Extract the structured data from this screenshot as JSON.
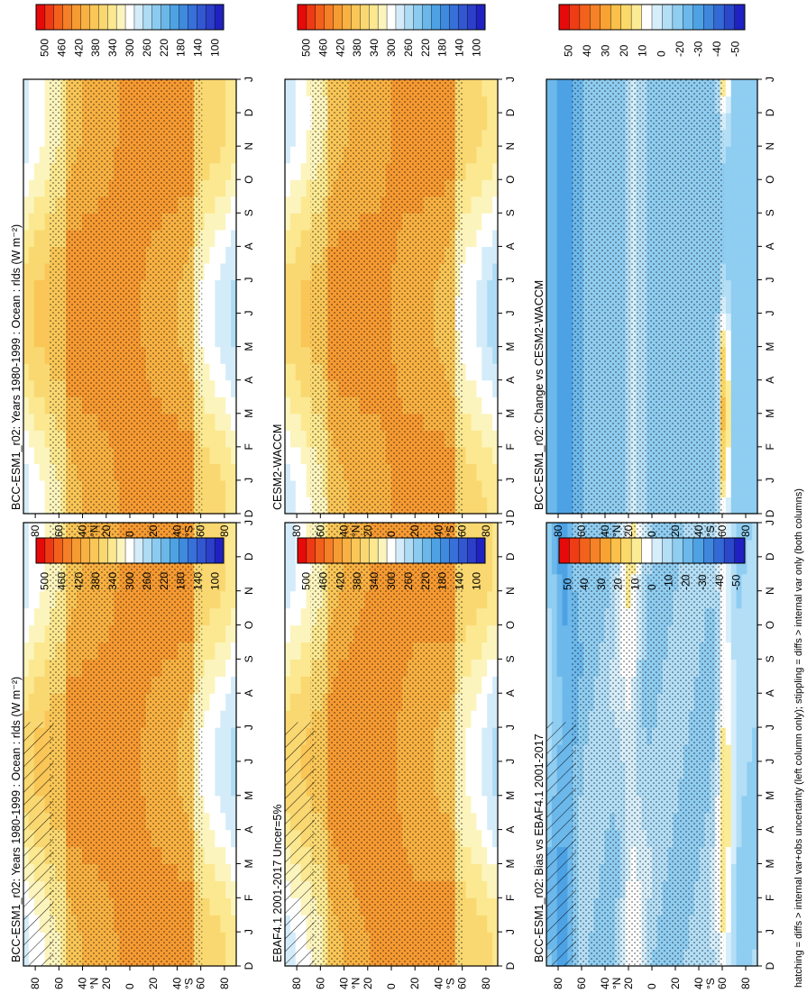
{
  "footnote": "hatching = diffs > internal var+obs uncertainty (left column only); stippling = diffs > internal var only (both columns)",
  "colors": {
    "abs": [
      "#e60a0a",
      "#ee3a14",
      "#f2601c",
      "#f47f26",
      "#f69a32",
      "#f8b142",
      "#f9c657",
      "#fad871",
      "#fbe890",
      "#fcf4bd",
      "#ffffff",
      "#d4ecf9",
      "#afdcf5",
      "#8ccbf0",
      "#6ab7ea",
      "#4ea2e4",
      "#3f89de",
      "#3770d8",
      "#3357d1",
      "#2c3fc9",
      "#1f22c0"
    ],
    "diff": [
      "#e60a0a",
      "#ee3c14",
      "#f2621c",
      "#f58226",
      "#f8a234",
      "#fac049",
      "#fbd86a",
      "#fceb95",
      "#ffffff",
      "#d6eefa",
      "#b3def6",
      "#8fcdf1",
      "#6cb8eb",
      "#4da2e4",
      "#3f87dd",
      "#3369d4",
      "#2a48c9",
      "#1f22c0"
    ]
  },
  "chart_data": [
    {
      "id": "p1",
      "type": "heatmap",
      "title": "BCC-ESM1_r02: Years 1980-1999 : Ocean : rlds (W m⁻²)",
      "x_ticks": [
        "D",
        "J",
        "F",
        "M",
        "A",
        "M",
        "J",
        "J",
        "A",
        "S",
        "O",
        "N",
        "D",
        "J"
      ],
      "y_ticks": [
        "80",
        "60",
        "40",
        "20",
        "0",
        "20",
        "40",
        "60",
        "80"
      ],
      "y_label_N": "°N",
      "y_label_S": "°S",
      "ylim": [
        -90,
        90
      ],
      "colorbar_labels": [
        "500",
        "460",
        "420",
        "380",
        "340",
        "300",
        "260",
        "220",
        "180",
        "140",
        "100"
      ],
      "colorbar_range": [
        80,
        520
      ],
      "hatching": "left column",
      "stippling": "both columns"
    },
    {
      "id": "p2",
      "type": "heatmap",
      "title": "BCC-ESM1_r02: Years 1980-1999 : Ocean : rlds (W m⁻²)",
      "x_ticks": [
        "D",
        "J",
        "F",
        "M",
        "A",
        "M",
        "J",
        "J",
        "A",
        "S",
        "O",
        "N",
        "D",
        "J"
      ],
      "y_ticks": [
        "80",
        "60",
        "40",
        "20",
        "0",
        "20",
        "40",
        "60",
        "80"
      ],
      "y_label_N": "°N",
      "y_label_S": "°S",
      "ylim": [
        -90,
        90
      ],
      "colorbar_labels": [
        "500",
        "460",
        "420",
        "380",
        "340",
        "300",
        "260",
        "220",
        "180",
        "140",
        "100"
      ],
      "colorbar_range": [
        80,
        520
      ]
    },
    {
      "id": "p3",
      "type": "heatmap",
      "title": "EBAF4.1 2001-2017 Uncer=5%",
      "x_ticks": [
        "D",
        "J",
        "F",
        "M",
        "A",
        "M",
        "J",
        "J",
        "A",
        "S",
        "O",
        "N",
        "D",
        "J"
      ],
      "y_ticks": [
        "80",
        "60",
        "40",
        "20",
        "0",
        "20",
        "40",
        "60",
        "80"
      ],
      "y_label_N": "°N",
      "y_label_S": "°S",
      "ylim": [
        -90,
        90
      ],
      "colorbar_labels": [
        "500",
        "460",
        "420",
        "380",
        "340",
        "300",
        "260",
        "220",
        "180",
        "140",
        "100"
      ],
      "colorbar_range": [
        80,
        520
      ]
    },
    {
      "id": "p4",
      "type": "heatmap",
      "title": "CESM2-WACCM",
      "x_ticks": [
        "D",
        "J",
        "F",
        "M",
        "A",
        "M",
        "J",
        "J",
        "A",
        "S",
        "O",
        "N",
        "D",
        "J"
      ],
      "y_ticks": [
        "80",
        "60",
        "40",
        "20",
        "0",
        "20",
        "40",
        "60",
        "80"
      ],
      "y_label_N": "°N",
      "y_label_S": "°S",
      "ylim": [
        -90,
        90
      ],
      "colorbar_labels": [
        "500",
        "460",
        "420",
        "380",
        "340",
        "300",
        "260",
        "220",
        "180",
        "140",
        "100"
      ],
      "colorbar_range": [
        80,
        520
      ]
    },
    {
      "id": "p5",
      "type": "heatmap",
      "title": "BCC-ESM1_r02: Bias vs EBAF4.1 2001-2017",
      "x_ticks": [
        "D",
        "J",
        "F",
        "M",
        "A",
        "M",
        "J",
        "J",
        "A",
        "S",
        "O",
        "N",
        "D",
        "J"
      ],
      "y_ticks": [
        "80",
        "60",
        "40",
        "20",
        "0",
        "20",
        "40",
        "60",
        "80"
      ],
      "y_label_N": "°N",
      "y_label_S": "°S",
      "ylim": [
        -90,
        90
      ],
      "colorbar_labels": [
        "50",
        "40",
        "30",
        "20",
        "10",
        "0",
        "-10",
        "-20",
        "-30",
        "-40",
        "-50"
      ],
      "colorbar_range": [
        -55,
        55
      ]
    },
    {
      "id": "p6",
      "type": "heatmap",
      "title": "BCC-ESM1_r02: Change vs CESM2-WACCM",
      "x_ticks": [
        "D",
        "J",
        "F",
        "M",
        "A",
        "M",
        "J",
        "J",
        "A",
        "S",
        "O",
        "N",
        "D",
        "J"
      ],
      "y_ticks": [
        "80",
        "60",
        "40",
        "20",
        "0",
        "20",
        "40",
        "60",
        "80"
      ],
      "y_label_N": "°N",
      "y_label_S": "°S",
      "ylim": [
        -90,
        90
      ],
      "colorbar_labels": [
        "50",
        "40",
        "30",
        "20",
        "10",
        "0",
        "-20",
        "-30",
        "-40",
        "-50"
      ],
      "colorbar_range": [
        -55,
        55
      ]
    }
  ]
}
